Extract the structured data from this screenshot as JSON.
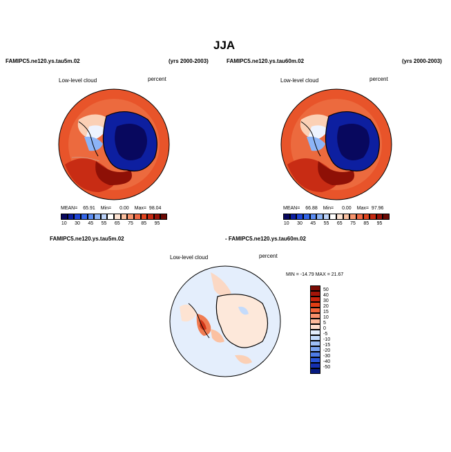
{
  "season": "JJA",
  "panels": [
    {
      "case": "FAMIPC5.ne120.ys.tau5m.02",
      "years": "(yrs 2000-2003)",
      "variable": "Low-level cloud",
      "units": "percent",
      "stats": {
        "mean_label": "MEAN=",
        "mean": "65.91",
        "min_label": "Min=",
        "min": "0.00",
        "max_label": "Max=",
        "max": "98.04"
      }
    },
    {
      "case": "FAMIPC5.ne120.ys.tau60m.02",
      "years": "(yrs 2000-2003)",
      "variable": "Low-level cloud",
      "units": "percent",
      "stats": {
        "mean_label": "MEAN=",
        "mean": "66.88",
        "min_label": "Min=",
        "min": "0.00",
        "max_label": "Max=",
        "max": "97.96"
      }
    }
  ],
  "diff": {
    "case_a": "FAMIPC5.ne120.ys.tau5m.02",
    "case_b": "- FAMIPC5.ne120.ys.tau60m.02",
    "variable": "Low-level cloud",
    "units": "percent",
    "minmax": "MIN = -14.79  MAX =  21.67"
  },
  "colorbar": {
    "labels": [
      "10",
      "30",
      "45",
      "55",
      "65",
      "75",
      "85",
      "95"
    ],
    "colors": [
      "#08085e",
      "#0d1fa0",
      "#1e45d6",
      "#3366e8",
      "#5a8cf2",
      "#8cb4f7",
      "#bcd3fa",
      "#ffffff",
      "#fde3d2",
      "#fbc1a2",
      "#f7946d",
      "#f06a45",
      "#e0451f",
      "#c52a12",
      "#981208",
      "#6a0a04"
    ]
  },
  "diff_colorbar": {
    "labels": [
      "50",
      "40",
      "30",
      "20",
      "15",
      "10",
      "5",
      "0",
      "-5",
      "-10",
      "-15",
      "-20",
      "-30",
      "-40",
      "-50"
    ],
    "colors": [
      "#7a0c05",
      "#a31509",
      "#c8240d",
      "#e23e14",
      "#f0643a",
      "#f7906b",
      "#fbb99c",
      "#fddccc",
      "#e4eefc",
      "#c4dbfb",
      "#9fc0f7",
      "#7ba4f0",
      "#4e7ce6",
      "#2a55d6",
      "#1530b0",
      "#061a80"
    ]
  }
}
